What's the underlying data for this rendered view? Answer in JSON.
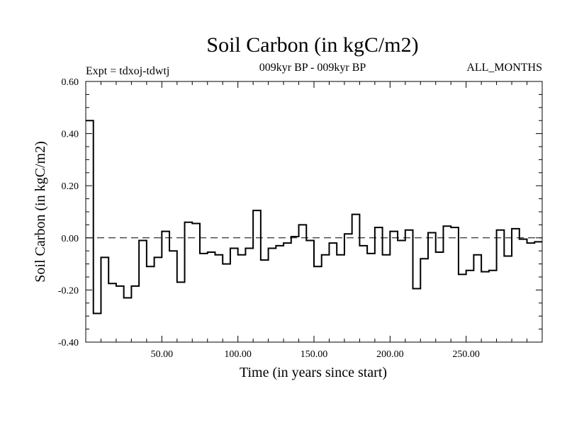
{
  "chart_data": {
    "type": "line",
    "step": true,
    "title": "Soil Carbon (in kgC/m2)",
    "subtitle": "009kyr BP - 009kyr BP",
    "left_label": "Expt = tdxoj-tdwtj",
    "right_label": "ALL_MONTHS",
    "xlabel": "Time (in years since start)",
    "ylabel": "Soil Carbon (in kgC/m2)",
    "xlim": [
      0,
      300
    ],
    "ylim": [
      -0.4,
      0.6
    ],
    "xticks": [
      50,
      100,
      150,
      200,
      250
    ],
    "xtick_labels": [
      "50.00",
      "100.00",
      "150.00",
      "200.00",
      "250.00"
    ],
    "yticks": [
      -0.4,
      -0.2,
      0.0,
      0.2,
      0.4,
      0.6
    ],
    "ytick_labels": [
      "-0.40",
      "-0.20",
      "0.00",
      "0.20",
      "0.40",
      "0.60"
    ],
    "reference_line": {
      "y": 0.0,
      "style": "dashed"
    },
    "series": [
      {
        "values": [
          [
            0,
            0.45
          ],
          [
            5,
            -0.29
          ],
          [
            10,
            -0.075
          ],
          [
            15,
            -0.175
          ],
          [
            20,
            -0.185
          ],
          [
            25,
            -0.23
          ],
          [
            30,
            -0.185
          ],
          [
            35,
            -0.01
          ],
          [
            40,
            -0.11
          ],
          [
            45,
            -0.075
          ],
          [
            50,
            0.025
          ],
          [
            55,
            -0.05
          ],
          [
            60,
            -0.17
          ],
          [
            65,
            0.06
          ],
          [
            70,
            0.055
          ],
          [
            75,
            -0.06
          ],
          [
            80,
            -0.055
          ],
          [
            85,
            -0.065
          ],
          [
            90,
            -0.1
          ],
          [
            95,
            -0.04
          ],
          [
            100,
            -0.065
          ],
          [
            105,
            -0.04
          ],
          [
            110,
            0.105
          ],
          [
            115,
            -0.085
          ],
          [
            120,
            -0.04
          ],
          [
            125,
            -0.03
          ],
          [
            130,
            -0.02
          ],
          [
            135,
            0.005
          ],
          [
            140,
            0.05
          ],
          [
            145,
            -0.01
          ],
          [
            150,
            -0.11
          ],
          [
            155,
            -0.065
          ],
          [
            160,
            -0.02
          ],
          [
            165,
            -0.065
          ],
          [
            170,
            0.015
          ],
          [
            175,
            0.09
          ],
          [
            180,
            -0.03
          ],
          [
            185,
            -0.06
          ],
          [
            190,
            0.04
          ],
          [
            195,
            -0.065
          ],
          [
            200,
            0.025
          ],
          [
            205,
            -0.01
          ],
          [
            210,
            0.03
          ],
          [
            215,
            -0.195
          ],
          [
            220,
            -0.08
          ],
          [
            225,
            0.02
          ],
          [
            230,
            -0.055
          ],
          [
            235,
            0.045
          ],
          [
            240,
            0.04
          ],
          [
            245,
            -0.14
          ],
          [
            250,
            -0.125
          ],
          [
            255,
            -0.065
          ],
          [
            260,
            -0.13
          ],
          [
            265,
            -0.125
          ],
          [
            270,
            0.03
          ],
          [
            275,
            -0.07
          ],
          [
            280,
            0.035
          ],
          [
            285,
            -0.005
          ],
          [
            290,
            -0.02
          ],
          [
            295,
            -0.015
          ]
        ],
        "end_x": 300
      }
    ]
  }
}
